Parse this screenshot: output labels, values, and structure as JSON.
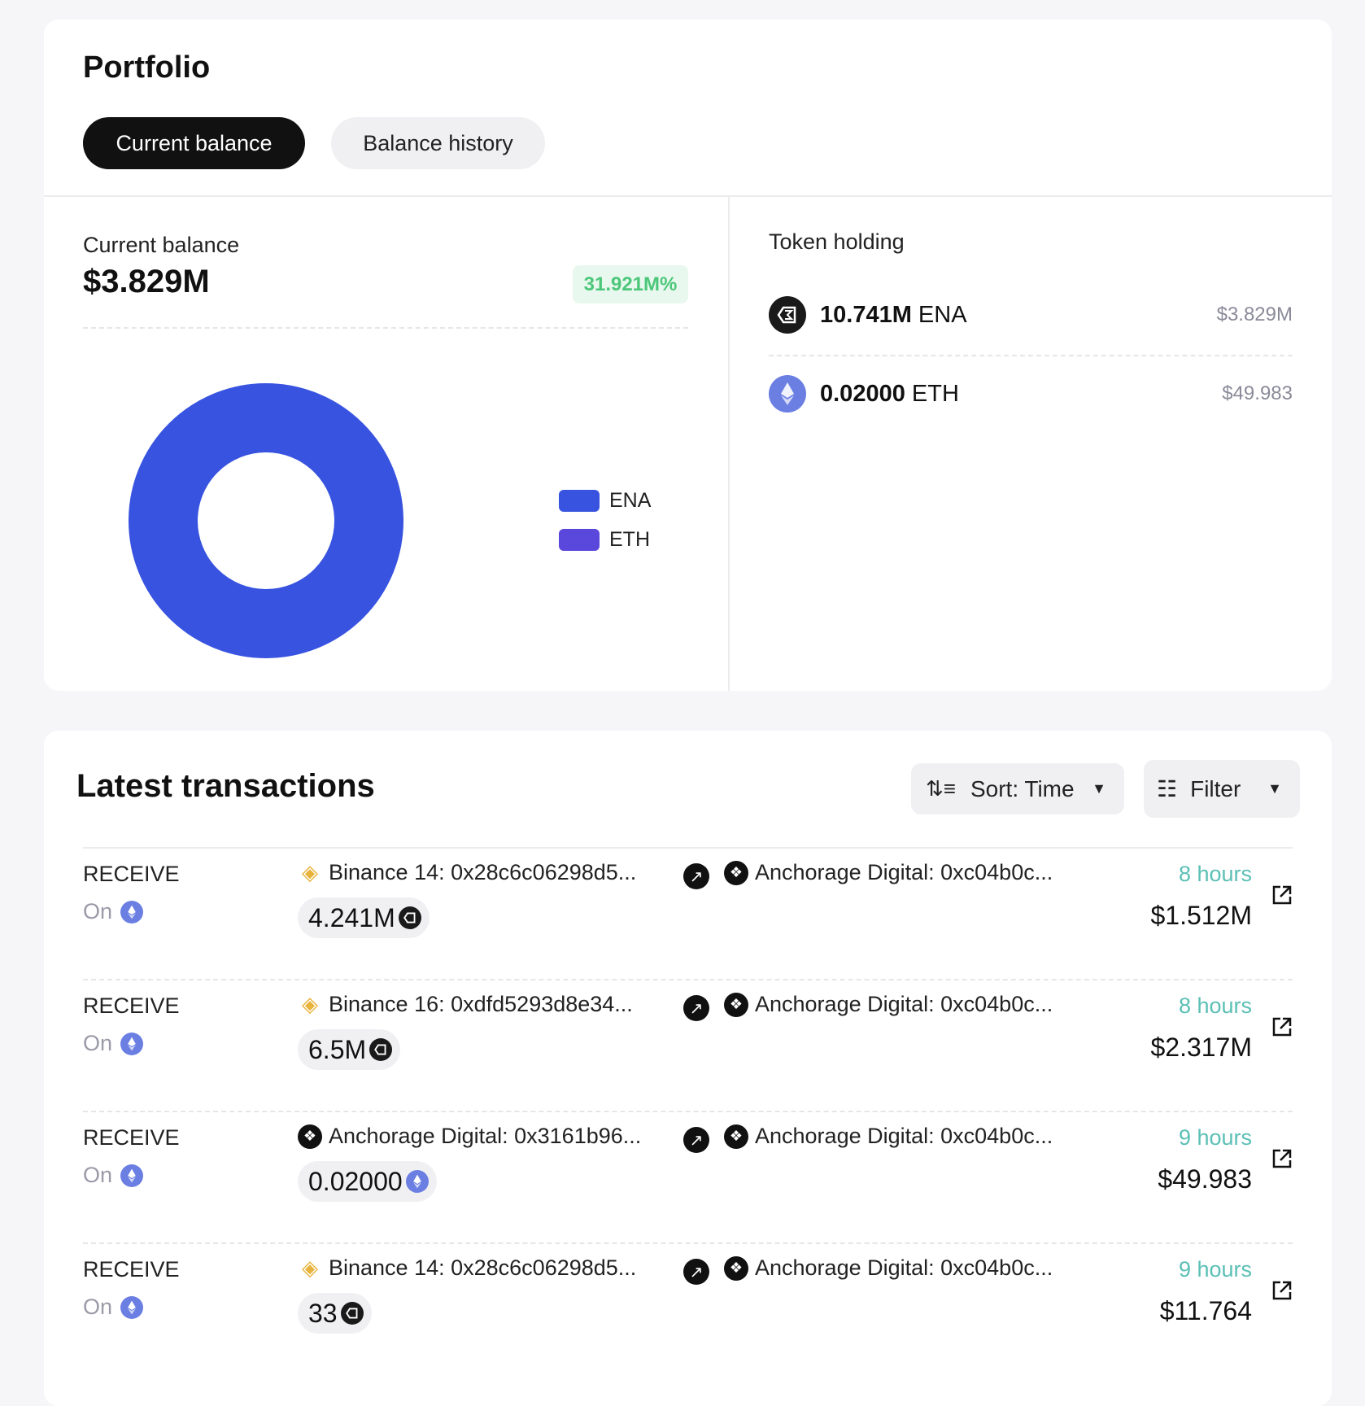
{
  "portfolio": {
    "title": "Portfolio",
    "tabs": [
      {
        "label": "Current balance",
        "active": true
      },
      {
        "label": "Balance history",
        "active": false
      }
    ],
    "balance": {
      "label": "Current balance",
      "value": "$3.829M",
      "change": "31.921M%",
      "change_color": "#4cc77a"
    },
    "legend": [
      {
        "name": "ENA",
        "color": "#3853e0"
      },
      {
        "name": "ETH",
        "color": "#5a47dc"
      }
    ],
    "token_holding": {
      "title": "Token holding",
      "items": [
        {
          "amount": "10.741M",
          "symbol": "ENA",
          "value": "$3.829M",
          "icon": "ena-icon"
        },
        {
          "amount": "0.02000",
          "symbol": "ETH",
          "value": "$49.983",
          "icon": "eth-icon"
        }
      ]
    }
  },
  "chart_data": {
    "type": "pie",
    "donut": true,
    "categories": [
      "ENA",
      "ETH"
    ],
    "values": [
      3829000,
      49.983
    ],
    "colors": [
      "#3853e0",
      "#5a47dc"
    ],
    "legend_placement": "right"
  },
  "transactions": {
    "title": "Latest transactions",
    "sort_label": "Sort: Time",
    "filter_label": "Filter",
    "rows": [
      {
        "type": "RECEIVE",
        "on": "On",
        "from": "Binance 14: 0x28c6c06298d5...",
        "from_icon": "binance",
        "to": "Anchorage Digital: 0xc04b0c...",
        "amount": "4.241M",
        "token": "ena",
        "time": "8 hours",
        "usd": "$1.512M"
      },
      {
        "type": "RECEIVE",
        "on": "On",
        "from": "Binance 16: 0xdfd5293d8e34...",
        "from_icon": "binance",
        "to": "Anchorage Digital: 0xc04b0c...",
        "amount": "6.5M",
        "token": "ena",
        "time": "8 hours",
        "usd": "$2.317M"
      },
      {
        "type": "RECEIVE",
        "on": "On",
        "from": "Anchorage Digital: 0x3161b96...",
        "from_icon": "anchorage",
        "to": "Anchorage Digital: 0xc04b0c...",
        "amount": "0.02000",
        "token": "eth",
        "time": "9 hours",
        "usd": "$49.983"
      },
      {
        "type": "RECEIVE",
        "on": "On",
        "from": "Binance 14: 0x28c6c06298d5...",
        "from_icon": "binance",
        "to": "Anchorage Digital: 0xc04b0c...",
        "amount": "33",
        "token": "ena",
        "time": "9 hours",
        "usd": "$11.764"
      }
    ]
  }
}
